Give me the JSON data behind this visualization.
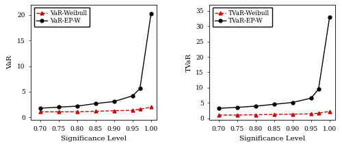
{
  "x": [
    0.7,
    0.75,
    0.8,
    0.85,
    0.9,
    0.95,
    0.97,
    1.0
  ],
  "var_weibull": [
    1.1,
    1.1,
    1.1,
    1.2,
    1.3,
    1.4,
    1.6,
    2.0
  ],
  "var_epw": [
    1.8,
    2.0,
    2.2,
    2.7,
    3.1,
    4.2,
    5.6,
    20.2
  ],
  "tvar_weibull": [
    1.1,
    1.1,
    1.2,
    1.3,
    1.4,
    1.5,
    1.7,
    2.3
  ],
  "tvar_epw": [
    3.3,
    3.6,
    4.0,
    4.6,
    5.2,
    6.6,
    9.5,
    33.0
  ],
  "xticks": [
    0.7,
    0.75,
    0.8,
    0.85,
    0.9,
    0.95,
    1.0
  ],
  "xlim": [
    0.675,
    1.015
  ],
  "var_ylim": [
    -0.5,
    22
  ],
  "var_yticks": [
    0,
    5,
    10,
    15,
    20
  ],
  "tvar_ylim": [
    -0.5,
    37
  ],
  "tvar_yticks": [
    0,
    5,
    10,
    15,
    20,
    25,
    30,
    35
  ],
  "xlabel": "Significance Level",
  "var_ylabel": "VaR",
  "tvar_ylabel": "TVaR",
  "weibull_color": "#cc0000",
  "epw_color": "#000000",
  "bg_color": "#ffffff",
  "legend1_labels": [
    "VaR-Weibull",
    "VaR-EP-W"
  ],
  "legend2_labels": [
    "TVaR-Weibull",
    "TVaR-EP-W"
  ]
}
